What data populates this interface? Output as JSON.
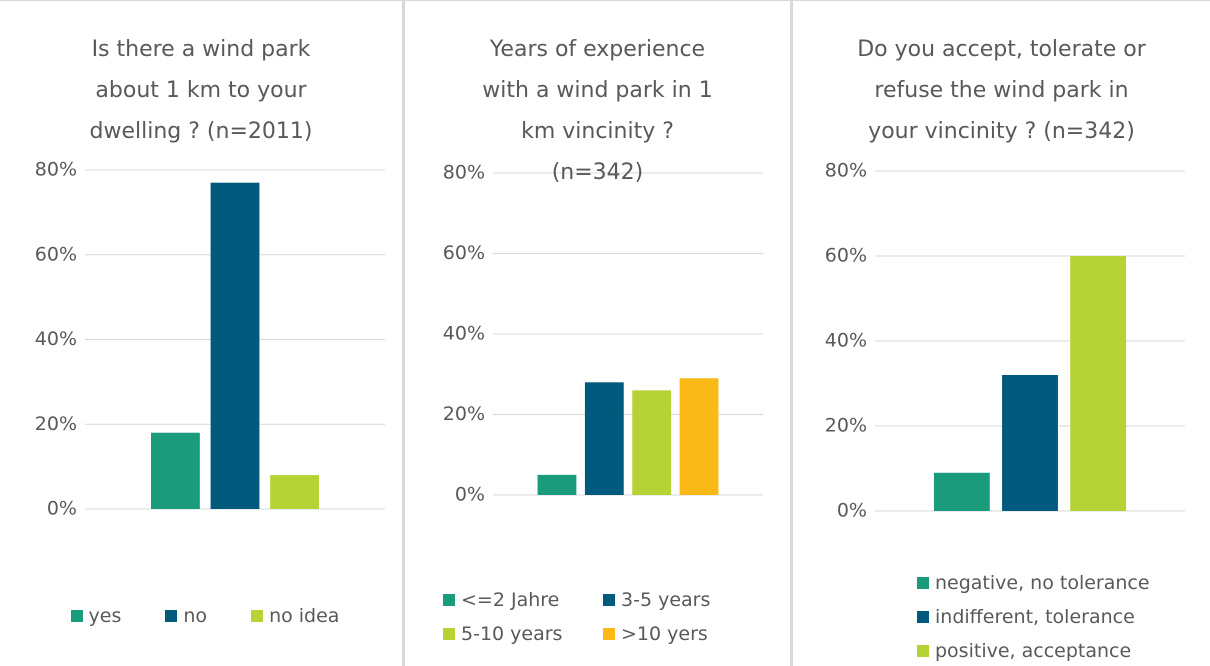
{
  "chart_data": [
    {
      "type": "bar",
      "title": "Is there a wind park about 1 km to your dwelling ? (n=2011)",
      "ylim": [
        0,
        80
      ],
      "yticks": [
        {
          "value": 0,
          "label": "0%"
        },
        {
          "value": 20,
          "label": "20%"
        },
        {
          "value": 40,
          "label": "40%"
        },
        {
          "value": 60,
          "label": "60%"
        },
        {
          "value": 80,
          "label": "80%"
        }
      ],
      "grid": true,
      "series": [
        {
          "name": "yes",
          "color": "#1a9c7c",
          "values": [
            18
          ]
        },
        {
          "name": "no",
          "color": "#005a7e",
          "values": [
            77
          ]
        },
        {
          "name": "no idea",
          "color": "#b5d334",
          "values": [
            8
          ]
        }
      ]
    },
    {
      "type": "bar",
      "title": "Years of experience with a wind park in 1 km vincinity ? (n=342)",
      "ylim": [
        0,
        80
      ],
      "yticks": [
        {
          "value": 0,
          "label": "0%"
        },
        {
          "value": 20,
          "label": "20%"
        },
        {
          "value": 40,
          "label": "40%"
        },
        {
          "value": 60,
          "label": "60%"
        },
        {
          "value": 80,
          "label": "80%"
        }
      ],
      "grid": true,
      "series": [
        {
          "name": "<=2 Jahre",
          "color": "#1a9c7c",
          "values": [
            5
          ]
        },
        {
          "name": "3-5 years",
          "color": "#005a7e",
          "values": [
            28
          ]
        },
        {
          "name": "5-10 years",
          "color": "#b5d334",
          "values": [
            26
          ]
        },
        {
          "name": ">10 yers",
          "color": "#fbb917",
          "values": [
            29
          ]
        }
      ]
    },
    {
      "type": "bar",
      "title": "Do you accept, tolerate or refuse the wind park in your vincinity ? (n=342)",
      "ylim": [
        0,
        80
      ],
      "yticks": [
        {
          "value": 0,
          "label": "0%"
        },
        {
          "value": 20,
          "label": "20%"
        },
        {
          "value": 40,
          "label": "40%"
        },
        {
          "value": 60,
          "label": "60%"
        },
        {
          "value": 80,
          "label": "80%"
        }
      ],
      "grid": true,
      "series": [
        {
          "name": "negative, no tolerance",
          "color": "#1a9c7c",
          "values": [
            9
          ]
        },
        {
          "name": "indifferent, tolerance",
          "color": "#005a7e",
          "values": [
            32
          ]
        },
        {
          "name": "positive, acceptance",
          "color": "#b5d334",
          "values": [
            60
          ]
        }
      ]
    }
  ]
}
